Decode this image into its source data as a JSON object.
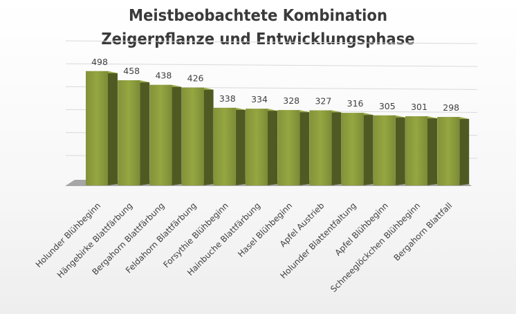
{
  "chart_data": {
    "type": "bar",
    "title_lines": [
      "Meistbeobachtete Kombination",
      "Zeigerpflanze und Entwicklungsphase"
    ],
    "categories": [
      "Holunder Blühbeginn",
      "Hängebirke Blattfärbung",
      "Bergahorn Blattfärbung",
      "Feldahorn Blattfärbung",
      "Forsythie Blühbeginn",
      "Hainbuche Blattfärbung",
      "Hasel Blühbeginn",
      "Apfel Austrieb",
      "Holunder Blattentfaltung",
      "Apfel Blühbeginn",
      "Schneeglöckchen Blühbeginn",
      "Bergahorn Blattfall"
    ],
    "values": [
      498,
      458,
      438,
      426,
      338,
      334,
      328,
      327,
      316,
      305,
      301,
      298
    ],
    "data_labels": [
      "498",
      "458",
      "438",
      "426",
      "338",
      "334",
      "328",
      "327",
      "316",
      "305",
      "301",
      "298"
    ],
    "ylim": [
      0,
      600
    ],
    "xlabel": "",
    "ylabel": "",
    "grid": true,
    "three_d": true,
    "bar_color": "#8a9a3c",
    "bar_side_color": "#4f5a23",
    "floor_color": "#a6a6a6"
  }
}
